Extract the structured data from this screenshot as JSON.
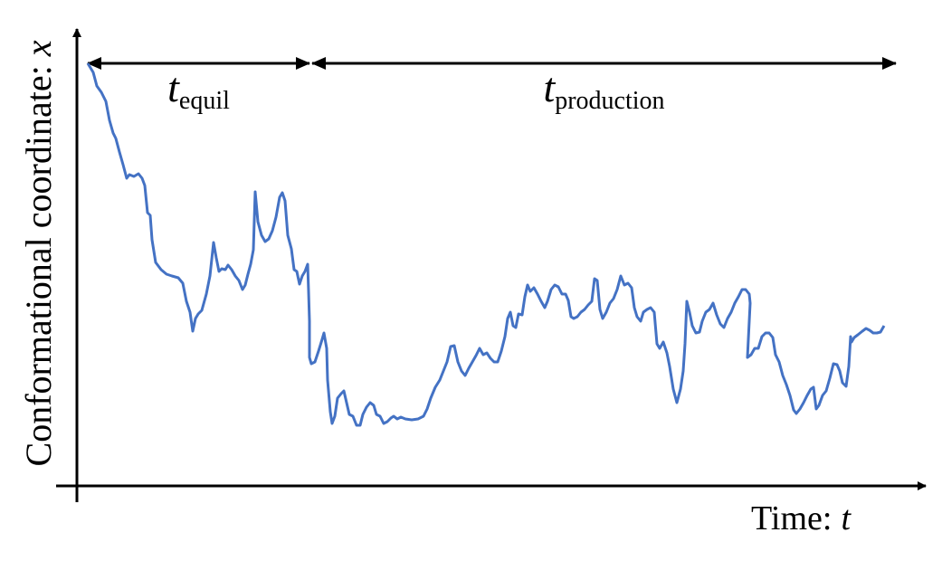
{
  "chart_data": {
    "type": "line",
    "x_label": {
      "text": "Time:",
      "symbol": "t"
    },
    "y_label": {
      "text": "Conformational coordinate:",
      "symbol": "x"
    },
    "color": "#4472c4",
    "xlim": [
      0,
      880
    ],
    "ylim": [
      0,
      500
    ],
    "annotations": [
      {
        "symbol": "t",
        "subscript": "equil",
        "x_range": [
          0,
          245
        ]
      },
      {
        "symbol": "t",
        "subscript": "production",
        "x_range": [
          248,
          893
        ]
      }
    ],
    "x": [
      0,
      6,
      10,
      15,
      20,
      24,
      28,
      31,
      35,
      39,
      43,
      46,
      51,
      56,
      60,
      63,
      66,
      69,
      71,
      75,
      81,
      87,
      93,
      100,
      105,
      109,
      113,
      116,
      119,
      122,
      126,
      131,
      135,
      139,
      142,
      145,
      148,
      152,
      155,
      159,
      163,
      167,
      171,
      174,
      177,
      180,
      183,
      185,
      188,
      192,
      196,
      200,
      204,
      208,
      212,
      215,
      218,
      221,
      225,
      228,
      231,
      234,
      237,
      240,
      243,
      244,
      245,
      245,
      247,
      251,
      255,
      259,
      261,
      264,
      265,
      268,
      270,
      273,
      276,
      280,
      283,
      286,
      289,
      293,
      297,
      301,
      304,
      308,
      312,
      316,
      319,
      323,
      327,
      331,
      335,
      338,
      342,
      346,
      351,
      358,
      365,
      371,
      375,
      379,
      384,
      389,
      393,
      397,
      401,
      405,
      409,
      413,
      417,
      421,
      425,
      429,
      433,
      437,
      441,
      445,
      449,
      453,
      457,
      461,
      464,
      467,
      470,
      473,
      476,
      480,
      483,
      486,
      489,
      493,
      497,
      501,
      505,
      508,
      512,
      516,
      520,
      524,
      528,
      531,
      534,
      537,
      541,
      545,
      549,
      553,
      557,
      560,
      563,
      566,
      569,
      573,
      577,
      581,
      585,
      589,
      593,
      597,
      601,
      604,
      607,
      611,
      614,
      618,
      622,
      626,
      629,
      632,
      636,
      640,
      643,
      647,
      651,
      655,
      658,
      660,
      662,
      665,
      668,
      672,
      676,
      679,
      683,
      687,
      691,
      695,
      699,
      703,
      707,
      711,
      715,
      719,
      723,
      727,
      731,
      732,
      729,
      733,
      737,
      741,
      745,
      749,
      753,
      757,
      760,
      764,
      768,
      772,
      776,
      780,
      783,
      787,
      791,
      795,
      799,
      802,
      805,
      808,
      812,
      816,
      820,
      824,
      828,
      831,
      834,
      838,
      841,
      843,
      844,
      847,
      851,
      856,
      860,
      864,
      868,
      872,
      876,
      880
    ],
    "y": [
      467,
      457,
      442,
      435,
      425,
      404,
      390,
      384,
      369,
      355,
      340,
      344,
      342,
      345,
      340,
      332,
      302,
      299,
      272,
      247,
      239,
      234,
      232,
      230,
      224,
      204,
      192,
      171,
      185,
      190,
      194,
      212,
      232,
      269,
      252,
      237,
      240,
      239,
      244,
      239,
      232,
      227,
      217,
      222,
      234,
      245,
      261,
      325,
      292,
      277,
      270,
      273,
      282,
      297,
      319,
      324,
      315,
      277,
      262,
      239,
      237,
      223,
      232,
      237,
      245,
      215,
      182,
      142,
      135,
      137,
      149,
      162,
      169,
      152,
      117,
      82,
      69,
      77,
      97,
      102,
      105,
      92,
      79,
      77,
      67,
      67,
      79,
      87,
      92,
      89,
      79,
      77,
      69,
      71,
      75,
      77,
      74,
      76,
      74,
      73,
      74,
      77,
      85,
      97,
      109,
      117,
      127,
      137,
      154,
      155,
      137,
      127,
      122,
      130,
      137,
      144,
      152,
      145,
      147,
      141,
      137,
      137,
      149,
      165,
      185,
      192,
      177,
      175,
      190,
      189,
      209,
      222,
      215,
      219,
      212,
      204,
      197,
      204,
      217,
      222,
      220,
      212,
      212,
      205,
      187,
      185,
      187,
      192,
      195,
      200,
      204,
      229,
      227,
      195,
      185,
      192,
      202,
      207,
      217,
      232,
      222,
      224,
      219,
      197,
      187,
      182,
      192,
      195,
      197,
      192,
      157,
      152,
      159,
      147,
      132,
      107,
      92,
      107,
      127,
      157,
      204,
      192,
      177,
      169,
      170,
      182,
      192,
      195,
      202,
      189,
      179,
      175,
      185,
      192,
      202,
      209,
      217,
      217,
      212,
      202,
      142,
      145,
      152,
      152,
      165,
      169,
      169,
      164,
      145,
      137,
      122,
      112,
      100,
      84,
      80,
      85,
      92,
      100,
      107,
      109,
      85,
      89,
      100,
      105,
      119,
      135,
      134,
      127,
      114,
      110,
      132,
      165,
      159,
      164,
      167,
      171,
      174,
      172,
      169,
      169,
      170,
      177
    ]
  }
}
